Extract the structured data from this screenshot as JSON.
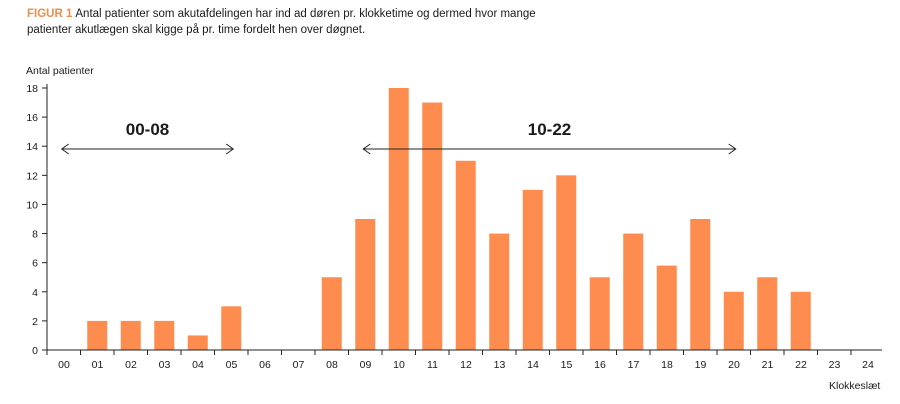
{
  "figure": {
    "label": "FIGUR 1",
    "caption": "Antal patienter som akutafdelingen har ind ad døren pr. klokketime og dermed hvor mange patienter akutlægen skal kigge på pr. time fordelt hen over døgnet."
  },
  "colors": {
    "bar": "#ff8c4f",
    "axis": "#222222"
  },
  "chart_data": {
    "type": "bar",
    "title": "",
    "xlabel": "Klokkeslæt",
    "ylabel": "Antal patienter",
    "ylim": [
      0,
      18
    ],
    "yticks": [
      0,
      2,
      4,
      6,
      8,
      10,
      12,
      14,
      16,
      18
    ],
    "x_tick_labels": [
      "00",
      "01",
      "02",
      "03",
      "04",
      "05",
      "06",
      "07",
      "08",
      "09",
      "10",
      "11",
      "12",
      "13",
      "14",
      "15",
      "16",
      "17",
      "18",
      "19",
      "20",
      "21",
      "22",
      "23",
      "24"
    ],
    "categories": [
      "01",
      "02",
      "03",
      "04",
      "05",
      "06",
      "07",
      "08",
      "09",
      "10",
      "11",
      "12",
      "13",
      "14",
      "15",
      "16",
      "17",
      "18",
      "19",
      "20",
      "21",
      "22",
      "23",
      "24"
    ],
    "values": [
      0,
      2,
      2,
      2,
      1,
      3,
      0,
      0,
      5,
      9,
      18,
      17,
      13,
      8,
      11,
      12,
      5,
      8,
      5.8,
      9,
      4,
      5,
      4,
      0
    ],
    "grid": false,
    "annotations": [
      {
        "text": "00-08",
        "from": "01",
        "to": "06"
      },
      {
        "text": "10-22",
        "from": "10",
        "to": "21"
      }
    ]
  }
}
